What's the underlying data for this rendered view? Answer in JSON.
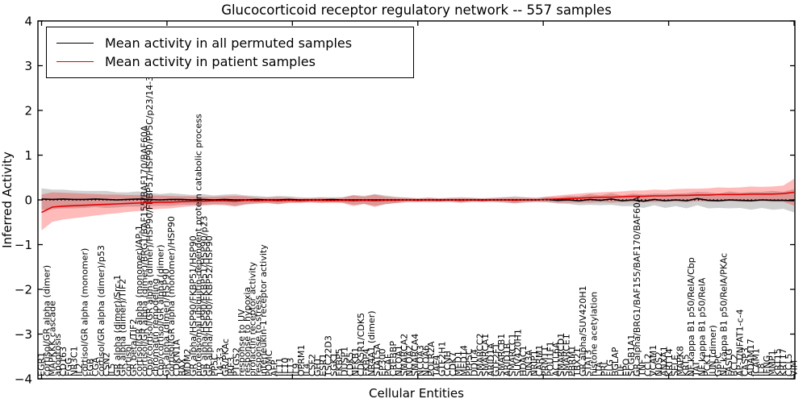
{
  "title": "Glucocorticoid receptor regulatory network -- 557 samples",
  "axes": {
    "ylabel": "Inferred Activity",
    "xlabel": "Cellular Entities",
    "ylim": [
      -4,
      4
    ],
    "ytick_values": [
      4,
      3,
      2,
      1,
      0,
      -1,
      -2,
      -3,
      -4
    ],
    "ytick_labels": [
      "4",
      "3",
      "2",
      "1",
      "0",
      "−1",
      "−2",
      "−3",
      "−4"
    ],
    "n_xticks": 7,
    "grid": false
  },
  "legend": {
    "position": "upper left",
    "items": [
      {
        "label": "Mean activity in all permuted samples",
        "color": "#000000"
      },
      {
        "label": "Mean activity in patient samples",
        "color": "#e60000"
      }
    ]
  },
  "colors": {
    "permuted_line": "#000000",
    "patient_line": "#e60000",
    "permuted_band": "rgba(110,110,110,0.32)",
    "patient_band": "rgba(255,0,0,0.27)",
    "zero_line": "#000000",
    "spine": "#000000"
  },
  "chart_data": {
    "type": "line",
    "title": "Glucocorticoid receptor regulatory network -- 557 samples",
    "xlabel": "Cellular Entities",
    "ylabel": "Inferred Activity",
    "ylim": [
      -4,
      4
    ],
    "legend_position": "upper left",
    "n_entities": 140,
    "entities": [
      "EGR1",
      "cortisol/GR alpha (dimer)",
      "MAPKKK cascade",
      "apoptosis",
      "CD163",
      "FGG",
      "NR3C1",
      "IL2",
      "cortisol/GR alpha (monomer)",
      "FGB",
      "CGA",
      "cortisol/GR alpha (dimer)/p53",
      "CSN2",
      "IL5",
      "GR alpha (dimer)/Src-1",
      "GR alpha (dimer)/TIF2",
      "cortisol",
      "GR beta/TIF2",
      "cortisol/GR alpha (monomer)/AP-1",
      "cortisol/GR alpha (dimer)/BRG1/BAF155/BAF170/BAF60A",
      "Cbp/cortisol/GR alpha (dimer)/HSP90/FKBP51/HSP90/PP5C/p23/14-3-3/FKBP52",
      "chromatin remodeling",
      "Cbp/cortisol/GR alpha (dimer)",
      "GR alpha (dimer)/HSP90",
      "cortisol/GR alpha (monomer)/HSP90",
      "CDKN1A",
      "BAX",
      "MDM2",
      "GR alpha/HSP90/FKBP51/HSP90",
      "proteasomal ubiquitin-dependent protein catabolic process",
      "GR alpha/HSP90/FKBP51/HSP90/p23",
      "GR alpha/HSP90/FKBP52/HSP90",
      "PP5C",
      "14-3-3",
      "GR/PKAc",
      "IRF3",
      "PTGS2",
      "response to UV",
      "response to hypoxia",
      "prolactin receptor activity",
      "response to stress",
      "interleukin-1 receptor activity",
      "POMC",
      "AFP",
      "IL11",
      "IL10",
      "IL13",
      "IL9",
      "OPRM1",
      "IL4",
      "CSF2",
      "GH1",
      "ESR1",
      "TSC22D3",
      "SGK1",
      "FKBP5",
      "DUSP1",
      "CDK5",
      "NFKB1",
      "CDK5R1/CDK5",
      "FKBP4",
      "NR4A1 (dimer)",
      "STAT5A",
      "EP300",
      "PCAF",
      "CREBBP",
      "NCOA1",
      "SMARCA2",
      "NCOA2",
      "SMARCA4",
      "NCOA3",
      "NCOA6",
      "POLR2A",
      "TAF4",
      "GTF2H1",
      "CCNH",
      "CDK7",
      "MED1",
      "MED14",
      "PPP5C",
      "DDIT4",
      "SMARCC2",
      "SMARCA1",
      "ARID1A",
      "GTF2F1",
      "SMARCB1",
      "ARID1B",
      "SMARCC1",
      "SUV420H1",
      "HDAC1",
      "SIN3A",
      "NRIP1",
      "CARM1",
      "PRMT1",
      "POU1F1",
      "ACTL6A",
      "SMARCD1",
      "SMARCE1",
      "PBRM1",
      "TBX21",
      "GR alpha/SUV420H1",
      "STAT3",
      "histone acetylation",
      "LTA",
      "PRL",
      "FLG",
      "BGLAP",
      "LIF",
      "EPO",
      "SCGB1A1",
      "GR alpha/BRG1/BAF155/BAF170/BAF60A",
      "TNF",
      "CCL2",
      "VCAM1",
      "NOS2",
      "ANXA1",
      "KRT14",
      "SELE",
      "MAPK8",
      "KRT5",
      "NF kappa B1 p50/RelA/Cbp",
      "TAT",
      "NF kappa B1 p50/RelA",
      "PCK1",
      "JUN (dimer)",
      "G6PC",
      "NF kappa B1 p50/RelA/PKAc",
      "FASLG",
      "BCL2",
      "AP-1/NFAT1-c-4",
      "CASP3",
      "ADAM17",
      "ICAM1",
      "IL8",
      "IFNG",
      "MMP1",
      "KRT15",
      "KRT17",
      "CCL5",
      "VIM"
    ],
    "series_points": 71,
    "series": [
      {
        "name": "Mean activity in all permuted samples",
        "color": "#000000",
        "values": [
          0.02,
          0.01,
          0.02,
          0.01,
          0.01,
          0.02,
          0.01,
          0.0,
          0.01,
          0.02,
          0.01,
          0.0,
          0.01,
          0.01,
          0.0,
          0.01,
          0.0,
          0.01,
          0.0,
          0.0,
          0.01,
          0.0,
          0.0,
          0.01,
          0.0,
          0.0,
          0.0,
          0.01,
          0.0,
          0.0,
          0.0,
          0.0,
          0.0,
          0.0,
          0.0,
          0.0,
          0.0,
          0.0,
          0.0,
          0.0,
          0.0,
          0.0,
          0.0,
          0.0,
          0.0,
          0.0,
          0.0,
          0.01,
          -0.01,
          0.0,
          -0.02,
          0.01,
          -0.01,
          0.02,
          -0.02,
          0.0,
          -0.03,
          0.01,
          -0.02,
          0.0,
          -0.02,
          0.03,
          -0.01,
          -0.02,
          0.0,
          -0.01,
          -0.02,
          0.0,
          -0.01,
          -0.01,
          -0.02
        ],
        "band_halfwidth": [
          0.24,
          0.22,
          0.21,
          0.2,
          0.19,
          0.18,
          0.19,
          0.17,
          0.16,
          0.17,
          0.15,
          0.13,
          0.14,
          0.12,
          0.11,
          0.12,
          0.1,
          0.11,
          0.13,
          0.1,
          0.08,
          0.07,
          0.09,
          0.07,
          0.06,
          0.05,
          0.06,
          0.05,
          0.06,
          0.11,
          0.09,
          0.13,
          0.1,
          0.07,
          0.05,
          0.04,
          0.05,
          0.04,
          0.05,
          0.06,
          0.05,
          0.04,
          0.05,
          0.06,
          0.08,
          0.06,
          0.05,
          0.06,
          0.07,
          0.09,
          0.1,
          0.12,
          0.11,
          0.13,
          0.12,
          0.14,
          0.15,
          0.13,
          0.16,
          0.14,
          0.17,
          0.15,
          0.18,
          0.16,
          0.19,
          0.17,
          0.2,
          0.18,
          0.21,
          0.19,
          0.26
        ]
      },
      {
        "name": "Mean activity in patient samples",
        "color": "#e60000",
        "values": [
          -0.28,
          -0.16,
          -0.14,
          -0.13,
          -0.12,
          -0.11,
          -0.1,
          -0.09,
          -0.08,
          -0.07,
          -0.06,
          -0.05,
          -0.05,
          -0.04,
          -0.03,
          -0.03,
          -0.02,
          -0.02,
          -0.03,
          -0.01,
          -0.02,
          -0.01,
          -0.02,
          -0.01,
          -0.02,
          -0.01,
          -0.01,
          -0.02,
          -0.01,
          -0.02,
          -0.01,
          -0.02,
          -0.01,
          -0.01,
          0.0,
          -0.01,
          0.0,
          -0.01,
          0.0,
          -0.01,
          0.0,
          -0.01,
          0.0,
          0.0,
          -0.01,
          0.0,
          0.0,
          0.01,
          0.02,
          0.03,
          0.04,
          0.05,
          0.06,
          0.06,
          0.07,
          0.08,
          0.08,
          0.09,
          0.09,
          0.1,
          0.1,
          0.11,
          0.11,
          0.12,
          0.12,
          0.12,
          0.13,
          0.13,
          0.13,
          0.14,
          0.17
        ],
        "band_halfwidth": [
          0.4,
          0.33,
          0.3,
          0.28,
          0.26,
          0.24,
          0.22,
          0.21,
          0.19,
          0.18,
          0.16,
          0.15,
          0.14,
          0.12,
          0.11,
          0.1,
          0.09,
          0.1,
          0.12,
          0.09,
          0.07,
          0.06,
          0.08,
          0.06,
          0.05,
          0.05,
          0.06,
          0.05,
          0.06,
          0.12,
          0.08,
          0.14,
          0.08,
          0.06,
          0.05,
          0.04,
          0.05,
          0.04,
          0.04,
          0.05,
          0.04,
          0.04,
          0.04,
          0.05,
          0.06,
          0.05,
          0.04,
          0.06,
          0.08,
          0.09,
          0.1,
          0.11,
          0.11,
          0.12,
          0.12,
          0.13,
          0.13,
          0.14,
          0.13,
          0.14,
          0.15,
          0.14,
          0.15,
          0.16,
          0.15,
          0.16,
          0.17,
          0.16,
          0.17,
          0.18,
          0.3
        ]
      }
    ],
    "zero_line": true
  }
}
